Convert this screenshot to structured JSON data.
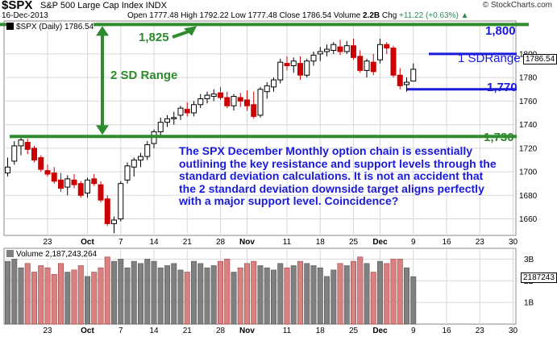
{
  "header": {
    "symbol": "$SPX",
    "name": "S&P 500 Large Cap Index INDX",
    "date": "16-Dec-2013",
    "open_label": "Open",
    "open": "1777.48",
    "high_label": "High",
    "high": "1792.22",
    "low_label": "Low",
    "low": "1777.48",
    "close_label": "Close",
    "close": "1786.54",
    "volume_label": "Volume",
    "volume": "2.2B",
    "chg_label": "Chg",
    "chg": "+11.22 (+0.63%)",
    "chg_arrow": "▲",
    "copyright": "© StockCharts.com"
  },
  "price_legend": "$SPX (Daily) 1786.54",
  "volume_legend": "Volume 2,187,243,264",
  "price_last_tag": "1786.54",
  "volume_last_tag": "2187243",
  "annotations": {
    "level_1825": "1,825",
    "range_2sd": "2 SD Range",
    "level_1730": "1,730",
    "level_1800": "1,800",
    "range_1sd": "1 SDRange",
    "level_1770": "1,770",
    "note": "The SPX December Monthly option chain is essentially outlining the key resistance and support levels through the standard deviation calculations. It is not an accident that the 2 standard deviation downside target aligns perfectly with a major support level. Coincidence?"
  },
  "colors": {
    "up": "#000000",
    "down": "#cc0000",
    "vol_up": "#808080",
    "vol_down": "#d98080",
    "sd2_line": "#2e8b2e",
    "sd1_line": "#1a1adb",
    "grid": "#d8d8d8"
  },
  "chart_data": [
    {
      "type": "candlestick",
      "title": "$SPX (Daily) 1786.54",
      "y_ticks": [
        1660,
        1680,
        1700,
        1720,
        1740,
        1760,
        1780,
        1800
      ],
      "ylim": [
        1646,
        1828
      ],
      "x_ticks": [
        {
          "label": "23",
          "index": 6
        },
        {
          "label": "Oct",
          "index": 12,
          "bold": true
        },
        {
          "label": "7",
          "index": 17
        },
        {
          "label": "14",
          "index": 22
        },
        {
          "label": "21",
          "index": 27
        },
        {
          "label": "28",
          "index": 32
        },
        {
          "label": "Nov",
          "index": 36,
          "bold": true
        },
        {
          "label": "11",
          "index": 42
        },
        {
          "label": "18",
          "index": 47
        },
        {
          "label": "25",
          "index": 52
        },
        {
          "label": "Dec",
          "index": 56,
          "bold": true
        },
        {
          "label": "9",
          "index": 61
        },
        {
          "label": "16",
          "index": 66
        },
        {
          "label": "23",
          "index": 71
        },
        {
          "label": "30",
          "index": 76
        }
      ],
      "grid": true,
      "candles": [
        {
          "o": 1699,
          "h": 1712,
          "l": 1696,
          "c": 1704
        },
        {
          "o": 1709,
          "h": 1726,
          "l": 1706,
          "c": 1722
        },
        {
          "o": 1722,
          "h": 1729,
          "l": 1714,
          "c": 1727
        },
        {
          "o": 1725,
          "h": 1728,
          "l": 1715,
          "c": 1719
        },
        {
          "o": 1720,
          "h": 1722,
          "l": 1708,
          "c": 1710
        },
        {
          "o": 1712,
          "h": 1714,
          "l": 1700,
          "c": 1702
        },
        {
          "o": 1701,
          "h": 1706,
          "l": 1696,
          "c": 1698
        },
        {
          "o": 1699,
          "h": 1704,
          "l": 1690,
          "c": 1692
        },
        {
          "o": 1693,
          "h": 1699,
          "l": 1683,
          "c": 1686
        },
        {
          "o": 1687,
          "h": 1697,
          "l": 1680,
          "c": 1694
        },
        {
          "o": 1693,
          "h": 1698,
          "l": 1686,
          "c": 1689
        },
        {
          "o": 1690,
          "h": 1692,
          "l": 1678,
          "c": 1680
        },
        {
          "o": 1682,
          "h": 1695,
          "l": 1678,
          "c": 1693
        },
        {
          "o": 1694,
          "h": 1698,
          "l": 1688,
          "c": 1690
        },
        {
          "o": 1689,
          "h": 1692,
          "l": 1674,
          "c": 1676
        },
        {
          "o": 1677,
          "h": 1680,
          "l": 1654,
          "c": 1656
        },
        {
          "o": 1656,
          "h": 1662,
          "l": 1648,
          "c": 1659
        },
        {
          "o": 1660,
          "h": 1692,
          "l": 1658,
          "c": 1690
        },
        {
          "o": 1693,
          "h": 1708,
          "l": 1690,
          "c": 1705
        },
        {
          "o": 1704,
          "h": 1712,
          "l": 1696,
          "c": 1710
        },
        {
          "o": 1710,
          "h": 1716,
          "l": 1704,
          "c": 1713
        },
        {
          "o": 1713,
          "h": 1726,
          "l": 1710,
          "c": 1723
        },
        {
          "o": 1724,
          "h": 1736,
          "l": 1720,
          "c": 1734
        },
        {
          "o": 1734,
          "h": 1746,
          "l": 1731,
          "c": 1742
        },
        {
          "o": 1742,
          "h": 1748,
          "l": 1738,
          "c": 1745
        },
        {
          "o": 1745,
          "h": 1751,
          "l": 1740,
          "c": 1746
        },
        {
          "o": 1748,
          "h": 1756,
          "l": 1744,
          "c": 1754
        },
        {
          "o": 1753,
          "h": 1759,
          "l": 1747,
          "c": 1750
        },
        {
          "o": 1750,
          "h": 1760,
          "l": 1747,
          "c": 1757
        },
        {
          "o": 1757,
          "h": 1766,
          "l": 1754,
          "c": 1762
        },
        {
          "o": 1762,
          "h": 1768,
          "l": 1758,
          "c": 1765
        },
        {
          "o": 1764,
          "h": 1770,
          "l": 1760,
          "c": 1766
        },
        {
          "o": 1767,
          "h": 1772,
          "l": 1761,
          "c": 1763
        },
        {
          "o": 1763,
          "h": 1768,
          "l": 1754,
          "c": 1756
        },
        {
          "o": 1756,
          "h": 1766,
          "l": 1752,
          "c": 1764
        },
        {
          "o": 1763,
          "h": 1767,
          "l": 1755,
          "c": 1760
        },
        {
          "o": 1761,
          "h": 1769,
          "l": 1752,
          "c": 1756
        },
        {
          "o": 1757,
          "h": 1768,
          "l": 1745,
          "c": 1747
        },
        {
          "o": 1748,
          "h": 1772,
          "l": 1746,
          "c": 1770
        },
        {
          "o": 1768,
          "h": 1776,
          "l": 1762,
          "c": 1773
        },
        {
          "o": 1772,
          "h": 1780,
          "l": 1768,
          "c": 1778
        },
        {
          "o": 1778,
          "h": 1796,
          "l": 1775,
          "c": 1793
        },
        {
          "o": 1792,
          "h": 1798,
          "l": 1786,
          "c": 1790
        },
        {
          "o": 1790,
          "h": 1797,
          "l": 1784,
          "c": 1794
        },
        {
          "o": 1792,
          "h": 1798,
          "l": 1778,
          "c": 1782
        },
        {
          "o": 1782,
          "h": 1796,
          "l": 1780,
          "c": 1794
        },
        {
          "o": 1794,
          "h": 1802,
          "l": 1790,
          "c": 1799
        },
        {
          "o": 1800,
          "h": 1806,
          "l": 1794,
          "c": 1802
        },
        {
          "o": 1802,
          "h": 1808,
          "l": 1798,
          "c": 1804
        },
        {
          "o": 1803,
          "h": 1810,
          "l": 1800,
          "c": 1808
        },
        {
          "o": 1806,
          "h": 1812,
          "l": 1799,
          "c": 1802
        },
        {
          "o": 1802,
          "h": 1811,
          "l": 1800,
          "c": 1807
        },
        {
          "o": 1807,
          "h": 1813,
          "l": 1795,
          "c": 1797
        },
        {
          "o": 1798,
          "h": 1803,
          "l": 1784,
          "c": 1786
        },
        {
          "o": 1786,
          "h": 1796,
          "l": 1780,
          "c": 1794
        },
        {
          "o": 1793,
          "h": 1800,
          "l": 1782,
          "c": 1785
        },
        {
          "o": 1795,
          "h": 1813,
          "l": 1792,
          "c": 1808
        },
        {
          "o": 1808,
          "h": 1810,
          "l": 1800,
          "c": 1805
        },
        {
          "o": 1805,
          "h": 1807,
          "l": 1780,
          "c": 1782
        },
        {
          "o": 1782,
          "h": 1788,
          "l": 1770,
          "c": 1773
        },
        {
          "o": 1774,
          "h": 1780,
          "l": 1768,
          "c": 1776
        },
        {
          "o": 1777,
          "h": 1792,
          "l": 1777,
          "c": 1787
        }
      ],
      "levels": [
        {
          "label": "1,825",
          "value": 1825
        },
        {
          "label": "1,730",
          "value": 1730
        },
        {
          "label": "1,800",
          "value": 1800
        },
        {
          "label": "1,770",
          "value": 1770
        }
      ]
    },
    {
      "type": "bar",
      "title": "Volume 2,187,243,264",
      "y_ticks": [
        {
          "label": "1B",
          "value": 1
        },
        {
          "label": "2B",
          "value": 2
        },
        {
          "label": "3B",
          "value": 3
        }
      ],
      "ylim": [
        0,
        3.5
      ],
      "unit": "B",
      "values": [
        2.9,
        3.0,
        2.6,
        2.8,
        2.4,
        2.7,
        2.6,
        2.3,
        2.8,
        2.4,
        2.5,
        2.7,
        2.2,
        2.4,
        2.6,
        3.1,
        2.9,
        3.0,
        2.6,
        2.9,
        2.8,
        3.0,
        2.9,
        2.6,
        2.7,
        2.8,
        2.5,
        2.4,
        2.9,
        2.8,
        2.6,
        2.7,
        2.9,
        3.0,
        2.4,
        2.6,
        2.8,
        2.9,
        2.7,
        2.6,
        2.5,
        2.8,
        2.6,
        2.7,
        2.9,
        2.8,
        2.7,
        2.6,
        2.2,
        2.5,
        2.8,
        2.7,
        2.9,
        3.1,
        2.8,
        2.4,
        2.9,
        2.8,
        3.0,
        3.0,
        2.6,
        2.19
      ]
    }
  ]
}
